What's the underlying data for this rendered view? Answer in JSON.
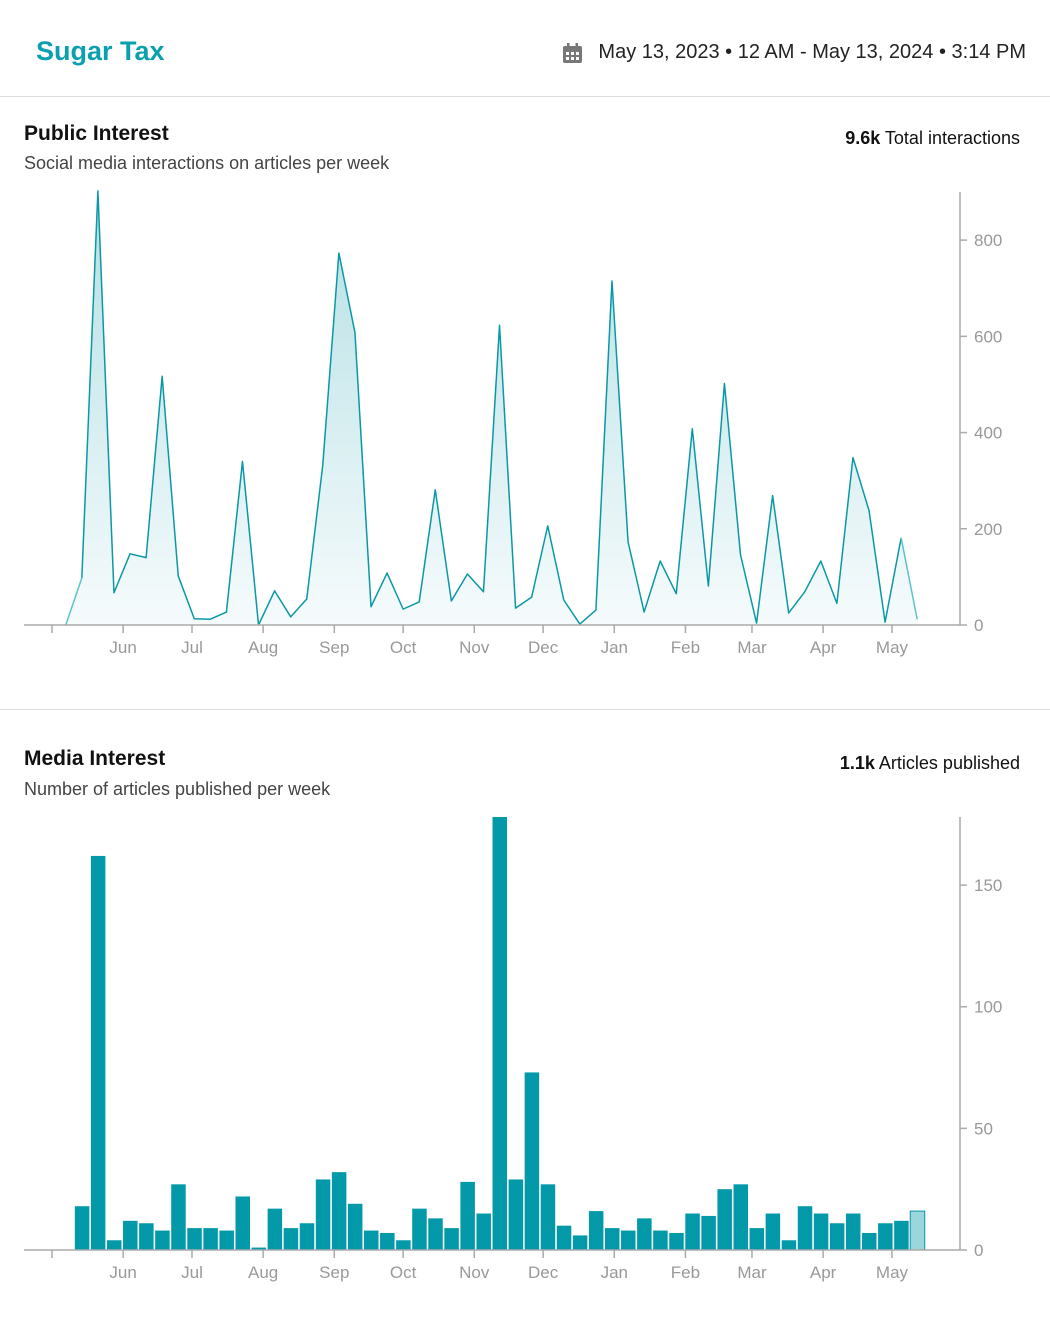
{
  "header": {
    "title": "Sugar Tax",
    "date_range": "May 13, 2023 • 12 AM - May 13, 2024 • 3:14 PM",
    "calendar_icon": "calendar-icon"
  },
  "public_interest": {
    "title": "Public Interest",
    "subtitle": "Social media interactions on articles per week",
    "total_value": "9.6k",
    "total_label": "Total interactions"
  },
  "media_interest": {
    "title": "Media Interest",
    "subtitle": "Number of articles published per week",
    "total_value": "1.1k",
    "total_label": "Articles published"
  },
  "colors": {
    "accent": "#0aa0ae",
    "line": "#0a98a6",
    "bar": "#0399a8",
    "partial": "#9bd6dc",
    "axis": "#aaaaaa"
  },
  "chart_data": [
    {
      "type": "area",
      "title": "",
      "xlabel": "",
      "ylabel": "",
      "ylim": [
        0,
        900
      ],
      "yticks": [
        0,
        200,
        400,
        600,
        800
      ],
      "y_axis_side": "right",
      "grid": false,
      "x_tick_labels": [
        "",
        "Jun",
        "Jul",
        "Aug",
        "Sep",
        "Oct",
        "Nov",
        "Dec",
        "Jan",
        "Feb",
        "Mar",
        "Apr",
        "May"
      ],
      "x_tick_dates": [
        "2023-05-01",
        "2023-06-01",
        "2023-07-01",
        "2023-08-01",
        "2023-09-01",
        "2023-10-01",
        "2023-11-01",
        "2023-12-01",
        "2024-01-01",
        "2024-02-01",
        "2024-03-01",
        "2024-04-01",
        "2024-05-01"
      ],
      "x": [
        "2023-05-07",
        "2023-05-14",
        "2023-05-21",
        "2023-05-28",
        "2023-06-04",
        "2023-06-11",
        "2023-06-18",
        "2023-06-25",
        "2023-07-02",
        "2023-07-09",
        "2023-07-16",
        "2023-07-23",
        "2023-07-30",
        "2023-08-06",
        "2023-08-13",
        "2023-08-20",
        "2023-08-27",
        "2023-09-03",
        "2023-09-10",
        "2023-09-17",
        "2023-09-24",
        "2023-10-01",
        "2023-10-08",
        "2023-10-15",
        "2023-10-22",
        "2023-10-29",
        "2023-11-05",
        "2023-11-12",
        "2023-11-19",
        "2023-11-26",
        "2023-12-03",
        "2023-12-10",
        "2023-12-17",
        "2023-12-24",
        "2023-12-31",
        "2024-01-07",
        "2024-01-14",
        "2024-01-21",
        "2024-01-28",
        "2024-02-04",
        "2024-02-11",
        "2024-02-18",
        "2024-02-25",
        "2024-03-03",
        "2024-03-10",
        "2024-03-17",
        "2024-03-24",
        "2024-03-31",
        "2024-04-07",
        "2024-04-14",
        "2024-04-21",
        "2024-04-28",
        "2024-05-05",
        "2024-05-12"
      ],
      "values": [
        0,
        98,
        902,
        67,
        148,
        140,
        517,
        102,
        13,
        12,
        27,
        340,
        0,
        71,
        17,
        54,
        333,
        773,
        608,
        38,
        108,
        33,
        48,
        281,
        50,
        106,
        69,
        623,
        35,
        58,
        206,
        52,
        2,
        31,
        715,
        173,
        27,
        133,
        65,
        408,
        81,
        502,
        146,
        4,
        269,
        25,
        69,
        133,
        45,
        348,
        238,
        6,
        181,
        12
      ]
    },
    {
      "type": "bar",
      "title": "",
      "xlabel": "",
      "ylabel": "",
      "ylim": [
        0,
        178
      ],
      "yticks": [
        0,
        50,
        100,
        150
      ],
      "y_axis_side": "right",
      "grid": false,
      "x_tick_labels": [
        "",
        "Jun",
        "Jul",
        "Aug",
        "Sep",
        "Oct",
        "Nov",
        "Dec",
        "Jan",
        "Feb",
        "Mar",
        "Apr",
        "May"
      ],
      "x_tick_dates": [
        "2023-05-01",
        "2023-06-01",
        "2023-07-01",
        "2023-08-01",
        "2023-09-01",
        "2023-10-01",
        "2023-11-01",
        "2023-12-01",
        "2024-01-01",
        "2024-02-01",
        "2024-03-01",
        "2024-04-01",
        "2024-05-01"
      ],
      "x": [
        "2023-05-14",
        "2023-05-21",
        "2023-05-28",
        "2023-06-04",
        "2023-06-11",
        "2023-06-18",
        "2023-06-25",
        "2023-07-02",
        "2023-07-09",
        "2023-07-16",
        "2023-07-23",
        "2023-07-30",
        "2023-08-06",
        "2023-08-13",
        "2023-08-20",
        "2023-08-27",
        "2023-09-03",
        "2023-09-10",
        "2023-09-17",
        "2023-09-24",
        "2023-10-01",
        "2023-10-08",
        "2023-10-15",
        "2023-10-22",
        "2023-10-29",
        "2023-11-05",
        "2023-11-12",
        "2023-11-19",
        "2023-11-26",
        "2023-12-03",
        "2023-12-10",
        "2023-12-17",
        "2023-12-24",
        "2023-12-31",
        "2024-01-07",
        "2024-01-14",
        "2024-01-21",
        "2024-01-28",
        "2024-02-04",
        "2024-02-11",
        "2024-02-18",
        "2024-02-25",
        "2024-03-03",
        "2024-03-10",
        "2024-03-17",
        "2024-03-24",
        "2024-03-31",
        "2024-04-07",
        "2024-04-14",
        "2024-04-21",
        "2024-04-28",
        "2024-05-05",
        "2024-05-12"
      ],
      "values": [
        18,
        162,
        4,
        12,
        11,
        8,
        27,
        9,
        9,
        8,
        22,
        1,
        17,
        9,
        11,
        29,
        32,
        19,
        8,
        7,
        4,
        17,
        13,
        9,
        28,
        15,
        178,
        29,
        73,
        27,
        10,
        6,
        16,
        9,
        8,
        13,
        8,
        7,
        15,
        14,
        25,
        27,
        9,
        15,
        4,
        18,
        15,
        11,
        15,
        7,
        11,
        12,
        16
      ]
    }
  ]
}
